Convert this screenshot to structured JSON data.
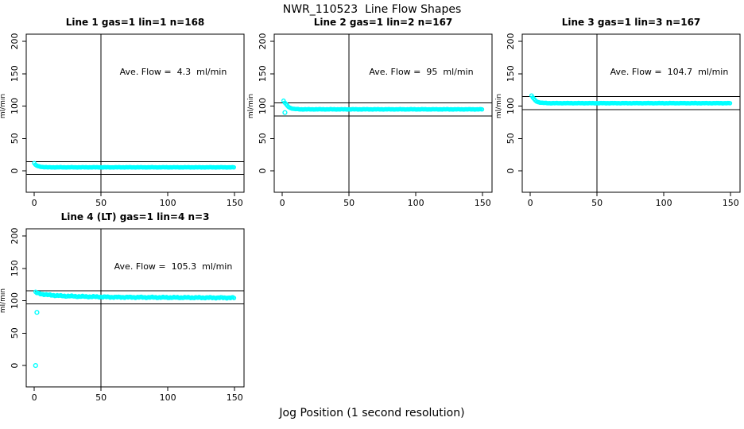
{
  "page": {
    "title": "NWR_110523  Line Flow Shapes",
    "xlabel": "Jog Position (1 second resolution)",
    "background_color": "#ffffff",
    "axis_color": "#000000"
  },
  "chart_data": [
    {
      "type": "scatter",
      "title": "Line 1 gas=1 lin=1 n=168",
      "annotation": "Ave. Flow =  4.3  ml/min",
      "ave_flow_ml_min": 4.3,
      "n": 168,
      "ylabel": "ml/min",
      "x_ticks": [
        0,
        50,
        100,
        150
      ],
      "y_ticks": [
        0,
        50,
        100,
        150,
        200
      ],
      "xlim": [
        -6,
        157
      ],
      "ylim": [
        -33,
        211
      ],
      "vline_x": 50,
      "hlines": [
        14.3,
        -5.7
      ],
      "marker_color": "#00FFFF",
      "series_keyframes": [
        [
          0,
          12
        ],
        [
          1,
          9
        ],
        [
          3,
          7
        ],
        [
          6,
          6
        ],
        [
          10,
          5.5
        ],
        [
          150,
          5.5
        ]
      ],
      "noise_amplitude": 0.3,
      "outliers": []
    },
    {
      "type": "scatter",
      "title": "Line 2 gas=1 lin=2 n=167",
      "annotation": "Ave. Flow =  95  ml/min",
      "ave_flow_ml_min": 95,
      "n": 167,
      "ylabel": "ml/min",
      "x_ticks": [
        0,
        50,
        100,
        150
      ],
      "y_ticks": [
        0,
        50,
        100,
        150,
        200
      ],
      "xlim": [
        -6,
        157
      ],
      "ylim": [
        -33,
        211
      ],
      "vline_x": 50,
      "hlines": [
        105,
        85
      ],
      "marker_color": "#00FFFF",
      "series_keyframes": [
        [
          1,
          108
        ],
        [
          2,
          105
        ],
        [
          4,
          100
        ],
        [
          6,
          97
        ],
        [
          9,
          95.5
        ],
        [
          14,
          95
        ],
        [
          150,
          95
        ]
      ],
      "noise_amplitude": 0.35,
      "outliers": [
        [
          2,
          90
        ]
      ]
    },
    {
      "type": "scatter",
      "title": "Line 3 gas=1 lin=3 n=167",
      "annotation": "Ave. Flow =  104.7  ml/min",
      "ave_flow_ml_min": 104.7,
      "n": 167,
      "ylabel": "ml/min",
      "x_ticks": [
        0,
        50,
        100,
        150
      ],
      "y_ticks": [
        0,
        50,
        100,
        150,
        200
      ],
      "xlim": [
        -6,
        157
      ],
      "ylim": [
        -33,
        211
      ],
      "vline_x": 50,
      "hlines": [
        114.7,
        94.7
      ],
      "marker_color": "#00FFFF",
      "series_keyframes": [
        [
          1,
          116
        ],
        [
          2,
          113
        ],
        [
          4,
          108
        ],
        [
          6,
          106
        ],
        [
          9,
          105
        ],
        [
          14,
          104.5
        ],
        [
          150,
          104.5
        ]
      ],
      "noise_amplitude": 0.35,
      "outliers": []
    },
    {
      "type": "scatter",
      "title": "Line 4 (LT) gas=1 lin=4 n=3",
      "annotation": "Ave. Flow =  105.3  ml/min",
      "ave_flow_ml_min": 105.3,
      "n": 3,
      "ylabel": "ml/min",
      "x_ticks": [
        0,
        50,
        100,
        150
      ],
      "y_ticks": [
        0,
        50,
        100,
        150,
        200
      ],
      "xlim": [
        -6,
        157
      ],
      "ylim": [
        -33,
        211
      ],
      "vline_x": 50,
      "hlines": [
        115.3,
        95.3
      ],
      "marker_color": "#00FFFF",
      "series_keyframes": [
        [
          1,
          113
        ],
        [
          2,
          112
        ],
        [
          5,
          110.5
        ],
        [
          10,
          109
        ],
        [
          20,
          107.5
        ],
        [
          35,
          106.5
        ],
        [
          60,
          105.5
        ],
        [
          100,
          105
        ],
        [
          150,
          104.5
        ]
      ],
      "noise_amplitude": 1.0,
      "outliers": [
        [
          2,
          82
        ],
        [
          1,
          0
        ]
      ]
    }
  ]
}
